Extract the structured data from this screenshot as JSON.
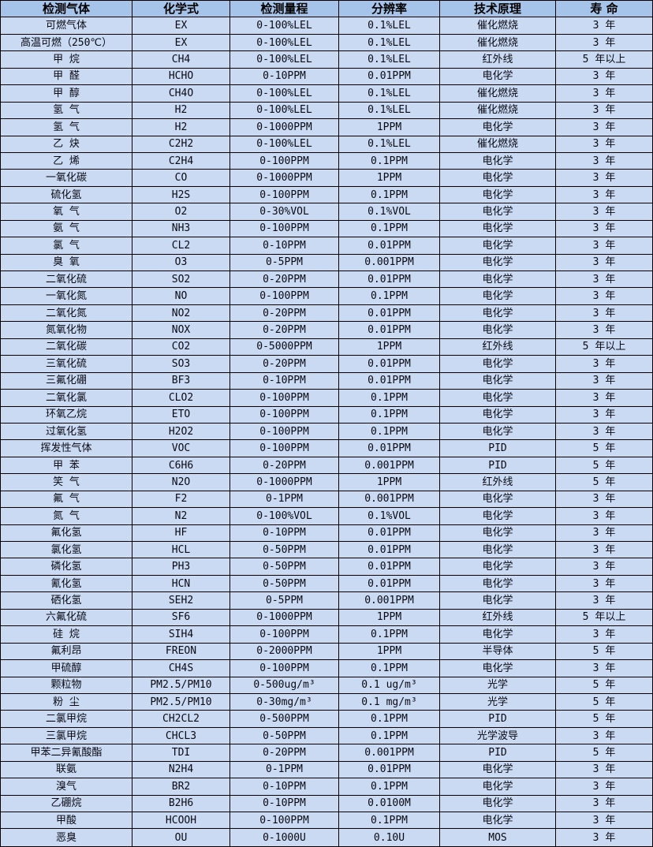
{
  "theme": {
    "header_bg": "#a6c4ea",
    "row_bg": "#c9daf2",
    "border_color": "#000000",
    "text_color": "#0a0a14",
    "header_text_color": "#000000"
  },
  "table": {
    "columns": [
      "检测气体",
      "化学式",
      "检测量程",
      "分辨率",
      "技术原理",
      "寿 命"
    ],
    "rows": [
      [
        "可燃气体",
        "EX",
        "0-100%LEL",
        "0.1%LEL",
        "催化燃烧",
        "3 年"
      ],
      [
        "高温可燃（250℃）",
        "EX",
        "0-100%LEL",
        "0.1%LEL",
        "催化燃烧",
        "3 年"
      ],
      [
        "甲 烷",
        "CH4",
        "0-100%LEL",
        "0.1%LEL",
        "红外线",
        "5 年以上"
      ],
      [
        "甲 醛",
        "HCHO",
        "0-10PPM",
        "0.01PPM",
        "电化学",
        "3 年"
      ],
      [
        "甲 醇",
        "CH4O",
        "0-100%LEL",
        "0.1%LEL",
        "催化燃烧",
        "3 年"
      ],
      [
        "氢 气",
        "H2",
        "0-100%LEL",
        "0.1%LEL",
        "催化燃烧",
        "3 年"
      ],
      [
        "氢 气",
        "H2",
        "0-1000PPM",
        "1PPM",
        "电化学",
        "3 年"
      ],
      [
        "乙 炔",
        "C2H2",
        "0-100%LEL",
        "0.1%LEL",
        "催化燃烧",
        "3 年"
      ],
      [
        "乙 烯",
        "C2H4",
        "0-100PPM",
        "0.1PPM",
        "电化学",
        "3 年"
      ],
      [
        "一氧化碳",
        "CO",
        "0-1000PPM",
        "1PPM",
        "电化学",
        "3 年"
      ],
      [
        "硫化氢",
        "H2S",
        "0-100PPM",
        "0.1PPM",
        "电化学",
        "3 年"
      ],
      [
        "氧 气",
        "O2",
        "0-30%VOL",
        "0.1%VOL",
        "电化学",
        "3 年"
      ],
      [
        "氨 气",
        "NH3",
        "0-100PPM",
        "0.1PPM",
        "电化学",
        "3 年"
      ],
      [
        "氯 气",
        "CL2",
        "0-10PPM",
        "0.01PPM",
        "电化学",
        "3 年"
      ],
      [
        "臭 氧",
        "O3",
        "0-5PPM",
        "0.001PPM",
        "电化学",
        "3 年"
      ],
      [
        "二氧化硫",
        "SO2",
        "0-20PPM",
        "0.01PPM",
        "电化学",
        "3 年"
      ],
      [
        "一氧化氮",
        "NO",
        "0-100PPM",
        "0.1PPM",
        "电化学",
        "3 年"
      ],
      [
        "二氧化氮",
        "NO2",
        "0-20PPM",
        "0.01PPM",
        "电化学",
        "3 年"
      ],
      [
        "氮氧化物",
        "NOX",
        "0-20PPM",
        "0.01PPM",
        "电化学",
        "3 年"
      ],
      [
        "二氧化碳",
        "CO2",
        "0-5000PPM",
        "1PPM",
        "红外线",
        "5 年以上"
      ],
      [
        "三氧化硫",
        "SO3",
        "0-20PPM",
        "0.01PPM",
        "电化学",
        "3 年"
      ],
      [
        "三氟化硼",
        "BF3",
        "0-10PPM",
        "0.01PPM",
        "电化学",
        "3 年"
      ],
      [
        "二氧化氯",
        "CLO2",
        "0-100PPM",
        "0.1PPM",
        "电化学",
        "3 年"
      ],
      [
        "环氧乙烷",
        "ETO",
        "0-100PPM",
        "0.1PPM",
        "电化学",
        "3 年"
      ],
      [
        "过氧化氢",
        "H2O2",
        "0-100PPM",
        "0.1PPM",
        "电化学",
        "3 年"
      ],
      [
        "挥发性气体",
        "VOC",
        "0-100PPM",
        "0.01PPM",
        "PID",
        "5 年"
      ],
      [
        "甲 苯",
        "C6H6",
        "0-20PPM",
        "0.001PPM",
        "PID",
        "5 年"
      ],
      [
        "笑 气",
        "N2O",
        "0-1000PPM",
        "1PPM",
        "红外线",
        "5 年"
      ],
      [
        "氟 气",
        "F2",
        "0-1PPM",
        "0.001PPM",
        "电化学",
        "3 年"
      ],
      [
        "氮 气",
        "N2",
        "0-100%VOL",
        "0.1%VOL",
        "电化学",
        "3 年"
      ],
      [
        "氟化氢",
        "HF",
        "0-10PPM",
        "0.01PPM",
        "电化学",
        "3 年"
      ],
      [
        "氯化氢",
        "HCL",
        "0-50PPM",
        "0.01PPM",
        "电化学",
        "3 年"
      ],
      [
        "磷化氢",
        "PH3",
        "0-50PPM",
        "0.01PPM",
        "电化学",
        "3 年"
      ],
      [
        "氰化氢",
        "HCN",
        "0-50PPM",
        "0.01PPM",
        "电化学",
        "3 年"
      ],
      [
        "硒化氢",
        "SEH2",
        "0-5PPM",
        "0.001PPM",
        "电化学",
        "3 年"
      ],
      [
        "六氟化硫",
        "SF6",
        "0-1000PPM",
        "1PPM",
        "红外线",
        "5 年以上"
      ],
      [
        "硅 烷",
        "SIH4",
        "0-100PPM",
        "0.1PPM",
        "电化学",
        "3 年"
      ],
      [
        "氟利昂",
        "FREON",
        "0-2000PPM",
        "1PPM",
        "半导体",
        "5 年"
      ],
      [
        "甲硫醇",
        "CH4S",
        "0-100PPM",
        "0.1PPM",
        "电化学",
        "3 年"
      ],
      [
        "颗粒物",
        "PM2.5/PM10",
        "0-500ug/m³",
        "0.1 ug/m³",
        "光学",
        "5 年"
      ],
      [
        "粉 尘",
        "PM2.5/PM10",
        "0-30mg/m³",
        "0.1 mg/m³",
        "光学",
        "5 年"
      ],
      [
        "二氯甲烷",
        "CH2CL2",
        "0-500PPM",
        "0.1PPM",
        "PID",
        "5 年"
      ],
      [
        "三氯甲烷",
        "CHCL3",
        "0-50PPM",
        "0.1PPM",
        "光学波导",
        "3 年"
      ],
      [
        "甲苯二异氰酸酯",
        "TDI",
        "0-20PPM",
        "0.001PPM",
        "PID",
        "5 年"
      ],
      [
        "联氨",
        "N2H4",
        "0-1PPM",
        "0.01PPM",
        "电化学",
        "3 年"
      ],
      [
        "溴气",
        "BR2",
        "0-10PPM",
        "0.1PPM",
        "电化学",
        "3 年"
      ],
      [
        "乙硼烷",
        "B2H6",
        "0-10PPM",
        "0.0100M",
        "电化学",
        "3 年"
      ],
      [
        "甲酸",
        "HCOOH",
        "0-100PPM",
        "0.1PPM",
        "电化学",
        "3 年"
      ],
      [
        "恶臭",
        "OU",
        "0-1000U",
        "0.10U",
        "MOS",
        "3 年"
      ]
    ]
  }
}
